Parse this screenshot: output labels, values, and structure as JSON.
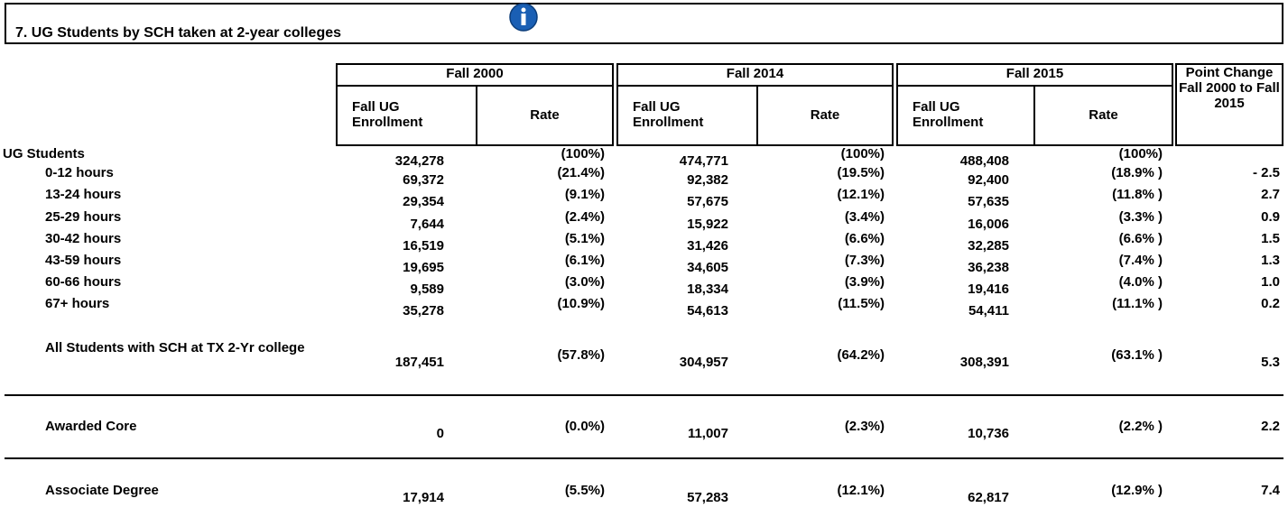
{
  "header": {
    "title": "7. UG Students by SCH taken at 2-year colleges"
  },
  "table": {
    "groups": [
      "Fall 2000",
      "Fall 2014",
      "Fall 2015"
    ],
    "change_header": "Point Change Fall 2000 to Fall 2015",
    "subheaders": [
      "Fall UG Enrollment",
      "Rate",
      "Fall UG Enrollment",
      "Rate",
      "Fall UG Enrollment",
      "Rate"
    ],
    "rows": [
      {
        "label": "UG Students",
        "cells": [
          "324,278",
          "(100%)",
          "474,771",
          "(100%)",
          "488,408",
          "(100%)",
          null
        ]
      },
      {
        "label": "0-12 hours",
        "cells": [
          "69,372",
          "(21.4%)",
          "92,382",
          "(19.5%)",
          "92,400",
          "(18.9% )",
          "- 2.5"
        ]
      },
      {
        "label": "13-24 hours",
        "cells": [
          "29,354",
          "(9.1%)",
          "57,675",
          "(12.1%)",
          "57,635",
          "(11.8% )",
          "2.7"
        ]
      },
      {
        "label": "25-29 hours",
        "cells": [
          "7,644",
          "(2.4%)",
          "15,922",
          "(3.4%)",
          "16,006",
          "(3.3% )",
          "0.9"
        ]
      },
      {
        "label": "30-42 hours",
        "cells": [
          "16,519",
          "(5.1%)",
          "31,426",
          "(6.6%)",
          "32,285",
          "(6.6% )",
          "1.5"
        ]
      },
      {
        "label": "43-59 hours",
        "cells": [
          "19,695",
          "(6.1%)",
          "34,605",
          "(7.3%)",
          "36,238",
          "(7.4% )",
          "1.3"
        ]
      },
      {
        "label": "60-66 hours",
        "cells": [
          "9,589",
          "(3.0%)",
          "18,334",
          "(3.9%)",
          "19,416",
          "(4.0% )",
          "1.0"
        ]
      },
      {
        "label": "67+ hours",
        "cells": [
          "35,278",
          "(10.9%)",
          "54,613",
          "(11.5%)",
          "54,411",
          "(11.1% )",
          "0.2"
        ]
      },
      {
        "label": "All Students with SCH at TX 2-Yr college",
        "cells": [
          "187,451",
          "(57.8%)",
          "304,957",
          "(64.2%)",
          "308,391",
          "(63.1% )",
          "5.3"
        ]
      },
      {
        "label": "Awarded Core",
        "cells": [
          "0",
          "(0.0%)",
          "11,007",
          "(2.3%)",
          "10,736",
          "(2.2% )",
          "2.2"
        ]
      },
      {
        "label": "Associate Degree",
        "cells": [
          "17,914",
          "(5.5%)",
          "57,283",
          "(12.1%)",
          "62,817",
          "(12.9% )",
          "7.4"
        ]
      }
    ]
  }
}
